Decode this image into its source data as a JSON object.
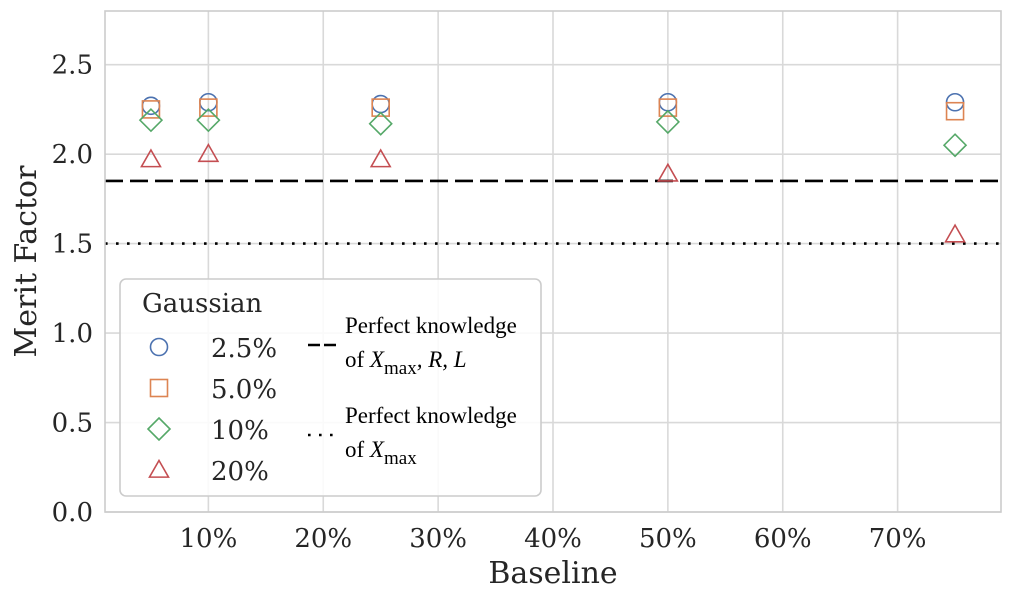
{
  "chart_data": {
    "type": "scatter",
    "xlabel": "Baseline",
    "ylabel": "Merit Factor",
    "xlim": [
      1,
      79
    ],
    "ylim": [
      0,
      2.8
    ],
    "x_ticks": [
      {
        "value": 10,
        "label": "10%"
      },
      {
        "value": 20,
        "label": "20%"
      },
      {
        "value": 30,
        "label": "30%"
      },
      {
        "value": 40,
        "label": "40%"
      },
      {
        "value": 50,
        "label": "50%"
      },
      {
        "value": 60,
        "label": "60%"
      },
      {
        "value": 70,
        "label": "70%"
      }
    ],
    "y_ticks": [
      {
        "value": 0.0,
        "label": "0.0"
      },
      {
        "value": 0.5,
        "label": "0.5"
      },
      {
        "value": 1.0,
        "label": "1.0"
      },
      {
        "value": 1.5,
        "label": "1.5"
      },
      {
        "value": 2.0,
        "label": "2.0"
      },
      {
        "value": 2.5,
        "label": "2.5"
      }
    ],
    "grid": true,
    "legend_title": "Gaussian",
    "legend_position": "lower-left",
    "series": [
      {
        "name": "2.5%",
        "marker": "circle",
        "color": "#4c72b0",
        "points": [
          [
            5,
            2.27
          ],
          [
            10,
            2.29
          ],
          [
            25,
            2.28
          ],
          [
            50,
            2.29
          ],
          [
            75,
            2.29
          ]
        ]
      },
      {
        "name": "5.0%",
        "marker": "square",
        "color": "#dd8452",
        "points": [
          [
            5,
            2.25
          ],
          [
            10,
            2.26
          ],
          [
            25,
            2.26
          ],
          [
            50,
            2.26
          ],
          [
            75,
            2.24
          ]
        ]
      },
      {
        "name": "10%",
        "marker": "diamond",
        "color": "#55a868",
        "points": [
          [
            5,
            2.19
          ],
          [
            10,
            2.19
          ],
          [
            25,
            2.17
          ],
          [
            50,
            2.18
          ],
          [
            75,
            2.05
          ]
        ]
      },
      {
        "name": "20%",
        "marker": "triangle",
        "color": "#c44e52",
        "points": [
          [
            5,
            1.97
          ],
          [
            10,
            2.0
          ],
          [
            25,
            1.97
          ],
          [
            50,
            1.89
          ],
          [
            75,
            1.55
          ]
        ]
      }
    ],
    "reference_lines": [
      {
        "y": 1.85,
        "style": "dashed",
        "color": "#000000",
        "label_line1": "Perfect knowledge",
        "label_line2_prefix": "of ",
        "label_var": "X",
        "label_sub": "max",
        "label_suffix": ", R, L"
      },
      {
        "y": 1.5,
        "style": "dotted",
        "color": "#000000",
        "label_line1": "Perfect knowledge",
        "label_line2_prefix": "of ",
        "label_var": "X",
        "label_sub": "max",
        "label_suffix": ""
      }
    ]
  }
}
